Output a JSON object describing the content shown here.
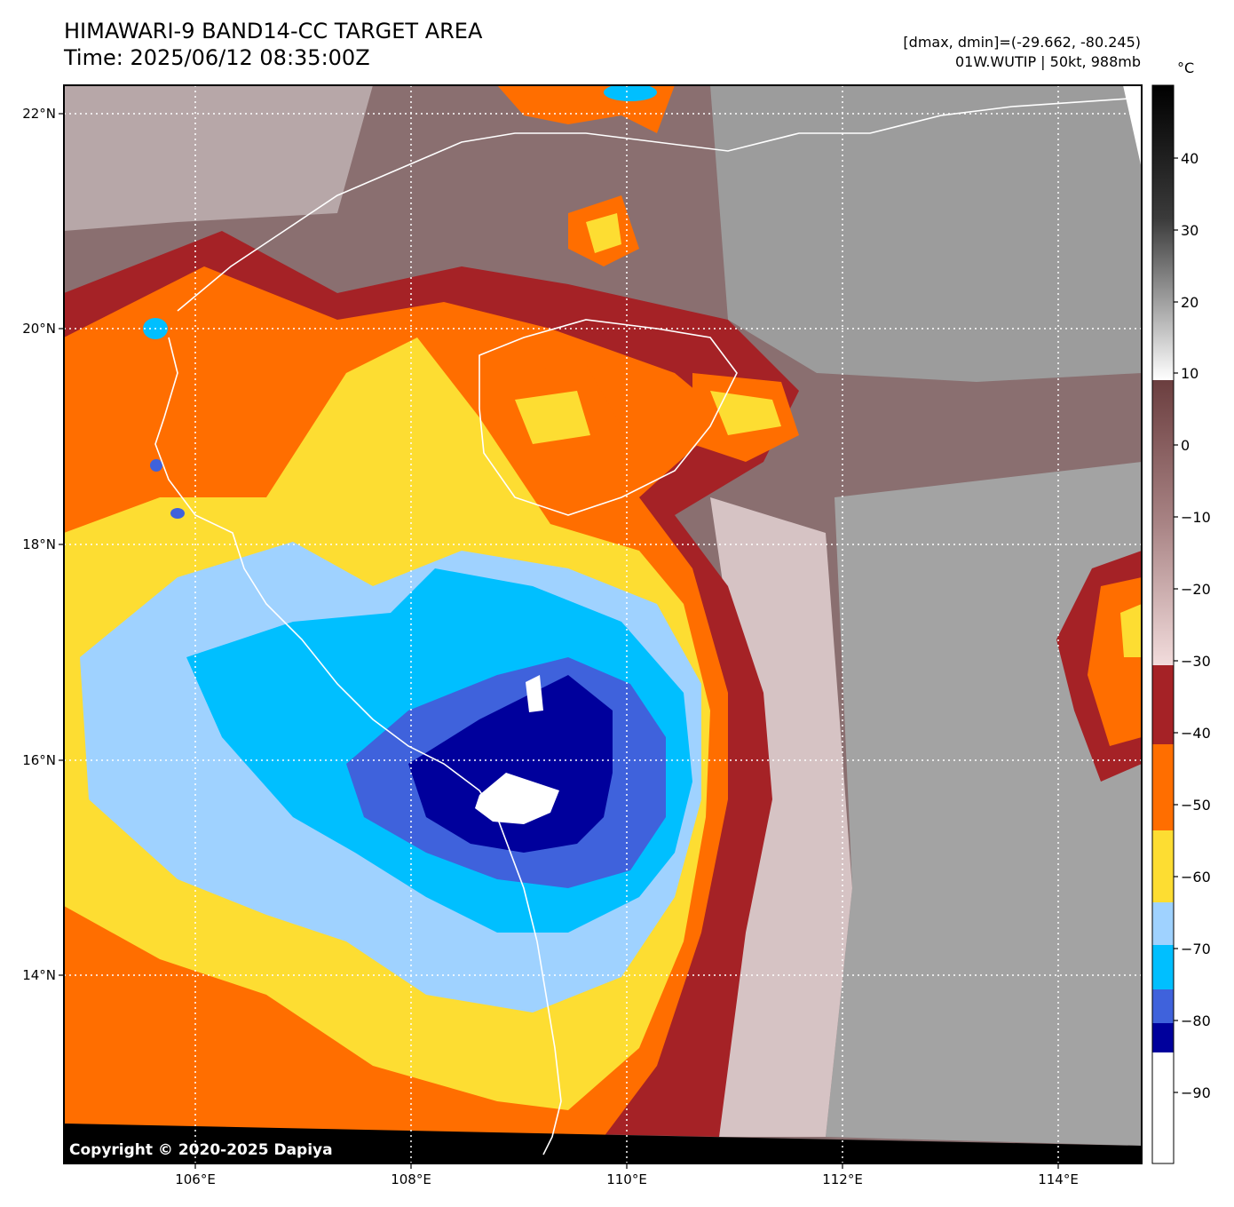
{
  "header": {
    "title_line1": "HIMAWARI-9 BAND14-CC TARGET AREA",
    "title_line2": "Time: 2025/06/12 08:35:00Z",
    "dmax_dmin": "[dmax, dmin]=(-29.662, -80.245)",
    "storm_info": "01W.WUTIP | 50kt, 988mb"
  },
  "map": {
    "lon_ticks": [
      "106°E",
      "108°E",
      "110°E",
      "112°E",
      "114°E"
    ],
    "lat_ticks": [
      "22°N",
      "20°N",
      "18°N",
      "16°N",
      "14°N"
    ],
    "copyright": "Copyright © 2020-2025 Dapiya"
  },
  "colorbar": {
    "unit": "°C",
    "labels": [
      "40",
      "30",
      "20",
      "10",
      "0",
      "−10",
      "−20",
      "−30",
      "−40",
      "−50",
      "−60",
      "−70",
      "−80",
      "−90"
    ],
    "colors": {
      "below_-85": "#ffffff",
      "-85_to_-80": "#00009c",
      "-80_to_-75": "#3f62dc",
      "-75_to_-70": "#00bfff",
      "-70_to_-65": "#9fd2ff",
      "-65_to_-55": "#fddd32",
      "-55_to_-43": "#ff6e00",
      "-43_to_-32": "#a52226",
      "-32_to_9": "gradient #f2dcdc to #6b3e3f",
      "9_to_48": "gradient #ffffff to #000000"
    }
  }
}
